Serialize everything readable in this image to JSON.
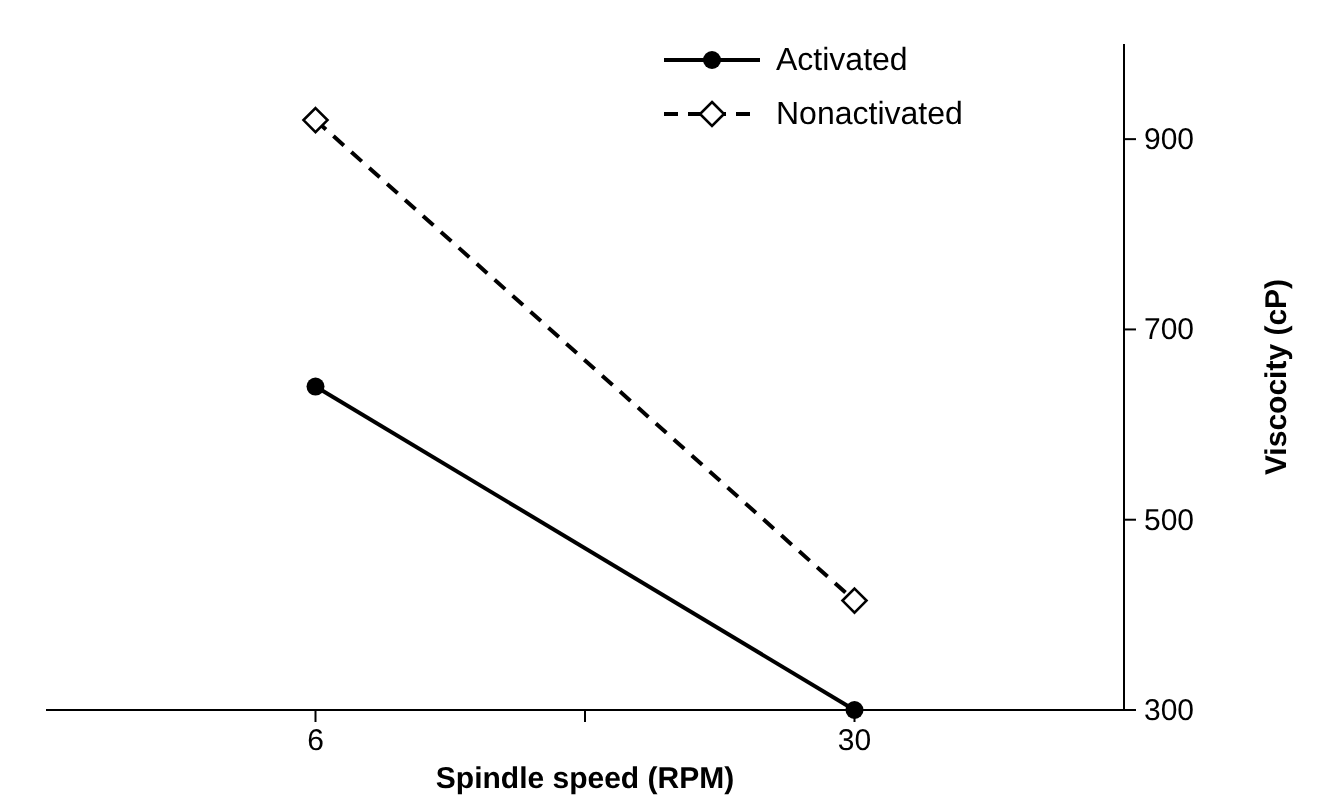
{
  "chart_data": {
    "type": "line",
    "xlabel": "Spindle speed (RPM)",
    "ylabel": "Viscocity (cP)",
    "x": [
      6,
      30
    ],
    "xlim": [
      -6,
      42
    ],
    "xticks": [
      6,
      {
        "value": 18,
        "label": null
      },
      30
    ],
    "ylim": [
      300,
      1000
    ],
    "yticks": [
      300,
      500,
      700,
      900
    ],
    "grid": false,
    "legend": "top right",
    "series": [
      {
        "name": "Activated",
        "color": "#000000",
        "values": [
          640,
          300
        ],
        "marker": "circle",
        "line_style": "solid"
      },
      {
        "name": "Nonactivated",
        "color": "#000000",
        "values": [
          920,
          415
        ],
        "marker": "diamond",
        "line_style": "dashed"
      }
    ]
  }
}
